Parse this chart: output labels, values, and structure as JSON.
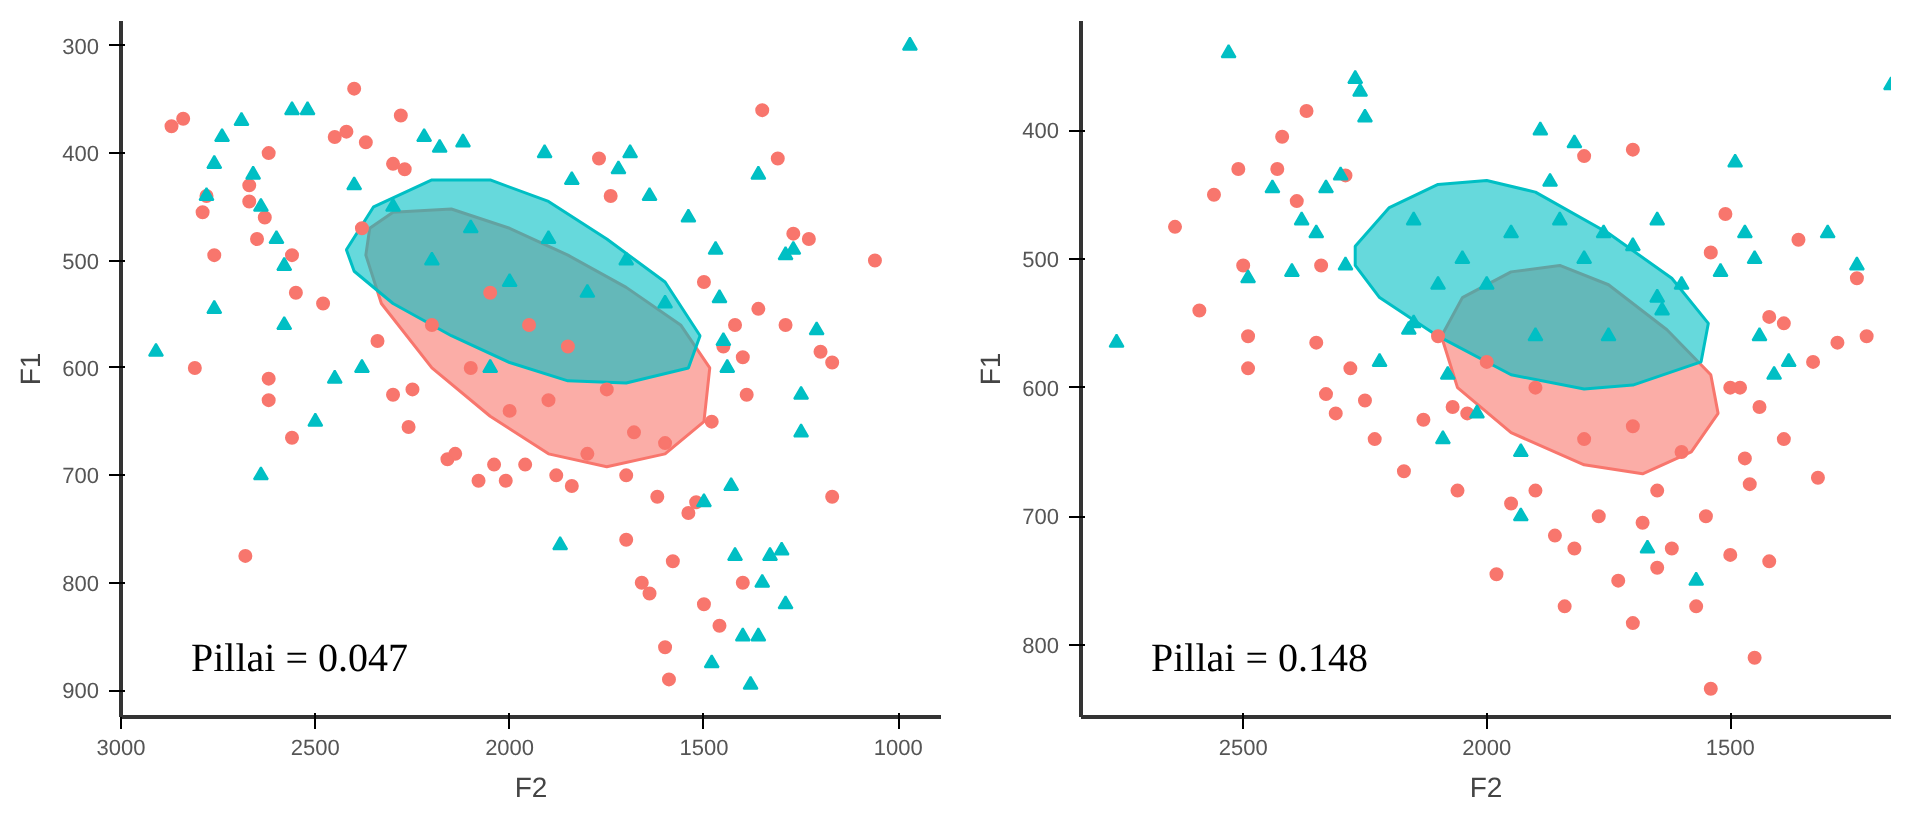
{
  "chart_data": [
    {
      "type": "scatter",
      "xlabel": "F2",
      "ylabel": "F1",
      "xlim": [
        3000,
        890
      ],
      "ylim": [
        925,
        277
      ],
      "xticks": [
        3000,
        2500,
        2000,
        1500,
        1000
      ],
      "yticks": [
        300,
        400,
        500,
        600,
        700,
        800,
        900
      ],
      "grid": false,
      "annotations": [
        "Pillai = 0.047"
      ],
      "series": [
        {
          "marker": "circle",
          "color": "#f8766d",
          "x": [
            2870,
            2840,
            2780,
            2790,
            2760,
            2620,
            2670,
            2670,
            2650,
            2630,
            2810,
            2680,
            2620,
            2620,
            2560,
            2560,
            2550,
            2480,
            2450,
            2420,
            2400,
            2370,
            2280,
            2270,
            2340,
            2300,
            2260,
            2160,
            2140,
            2080,
            2040,
            2010,
            1960,
            1880,
            1840,
            1770,
            1740,
            1700,
            1660,
            1640,
            1600,
            1590,
            1540,
            1520,
            1500,
            1460,
            1450,
            1420,
            1400,
            1390,
            1360,
            1350,
            1310,
            1290,
            1270,
            1230,
            1170,
            1170,
            1060,
            1900,
            2000,
            1750,
            1680,
            1600,
            2380,
            2300,
            2200,
            2250,
            1800,
            1700,
            1620,
            1580,
            1400,
            1200,
            1480,
            1500,
            2100,
            2050,
            1950,
            1850
          ],
          "values": [
            375,
            368,
            440,
            455,
            495,
            400,
            430,
            445,
            480,
            460,
            600,
            775,
            610,
            630,
            665,
            495,
            530,
            540,
            385,
            380,
            340,
            390,
            365,
            415,
            575,
            625,
            655,
            685,
            680,
            705,
            690,
            705,
            690,
            700,
            710,
            405,
            440,
            760,
            800,
            810,
            860,
            890,
            735,
            725,
            820,
            840,
            580,
            560,
            590,
            625,
            545,
            360,
            405,
            560,
            475,
            480,
            595,
            720,
            500,
            630,
            640,
            620,
            660,
            670,
            470,
            410,
            560,
            620,
            680,
            700,
            720,
            780,
            800,
            585,
            650,
            520,
            600,
            530,
            560,
            580
          ]
        },
        {
          "marker": "triangle",
          "color": "#00bfc4",
          "x": [
            2910,
            2760,
            2780,
            2760,
            2740,
            2690,
            2660,
            2640,
            2600,
            2580,
            2580,
            2560,
            2520,
            2500,
            2450,
            2380,
            2220,
            2180,
            2120,
            1910,
            1870,
            1840,
            1720,
            1690,
            1640,
            1540,
            1470,
            1460,
            1450,
            1440,
            1430,
            1420,
            1400,
            1380,
            1360,
            1350,
            1330,
            1300,
            1290,
            1360,
            1290,
            1270,
            1210,
            1250,
            1250,
            970,
            2640,
            1500,
            1480,
            2200,
            2100,
            2000,
            1900,
            1800,
            1700,
            2300,
            2050,
            1600,
            2400
          ],
          "values": [
            585,
            545,
            440,
            410,
            385,
            370,
            420,
            450,
            480,
            505,
            560,
            360,
            360,
            650,
            610,
            600,
            385,
            395,
            390,
            400,
            765,
            425,
            415,
            400,
            440,
            460,
            490,
            535,
            575,
            600,
            710,
            775,
            850,
            895,
            850,
            800,
            775,
            770,
            820,
            420,
            495,
            490,
            565,
            625,
            660,
            300,
            700,
            725,
            875,
            500,
            470,
            520,
            480,
            530,
            500,
            450,
            600,
            540,
            430
          ]
        },
        {
          "type": "area",
          "color": "#f8766d",
          "x": [
            2360,
            2300,
            2150,
            2000,
            1850,
            1700,
            1560,
            1485,
            1500,
            1600,
            1750,
            1900,
            2050,
            2200,
            2330,
            2370
          ],
          "values": [
            470,
            455,
            452,
            470,
            495,
            525,
            560,
            600,
            650,
            680,
            692,
            680,
            645,
            600,
            540,
            495
          ]
        },
        {
          "type": "area",
          "color": "#00bfc4",
          "x": [
            2420,
            2350,
            2200,
            2050,
            1900,
            1750,
            1600,
            1510,
            1540,
            1700,
            1850,
            2000,
            2150,
            2300,
            2400
          ],
          "values": [
            490,
            450,
            425,
            425,
            445,
            480,
            520,
            570,
            600,
            614,
            612,
            595,
            570,
            540,
            510
          ]
        }
      ]
    },
    {
      "type": "scatter",
      "xlabel": "F2",
      "ylabel": "F1",
      "xlim": [
        2833,
        1170
      ],
      "ylim": [
        856,
        315
      ],
      "xticks": [
        2500,
        2000,
        1500
      ],
      "yticks": [
        400,
        500,
        600,
        700,
        800
      ],
      "grid": false,
      "annotations": [
        "Pillai = 0.148"
      ],
      "series": [
        {
          "marker": "circle",
          "color": "#f8766d",
          "x": [
            2640,
            2590,
            2560,
            2510,
            2500,
            2490,
            2490,
            2430,
            2420,
            2390,
            2370,
            2350,
            2340,
            2330,
            2310,
            2290,
            2280,
            2250,
            2230,
            2170,
            2130,
            2070,
            2060,
            2040,
            1980,
            1950,
            1900,
            1860,
            1840,
            1820,
            1800,
            1770,
            1730,
            1700,
            1700,
            1680,
            1650,
            1620,
            1570,
            1540,
            1540,
            1510,
            1500,
            1480,
            1470,
            1460,
            1450,
            1440,
            1420,
            1420,
            1390,
            1390,
            1360,
            1330,
            1320,
            1280,
            1240,
            1220,
            1800,
            1700,
            1600,
            1650,
            1900,
            2000,
            2100,
            1550,
            1500
          ],
          "values": [
            475,
            540,
            450,
            430,
            505,
            560,
            585,
            430,
            405,
            455,
            385,
            565,
            505,
            605,
            620,
            435,
            585,
            610,
            640,
            665,
            625,
            615,
            680,
            620,
            745,
            690,
            680,
            715,
            770,
            725,
            420,
            700,
            750,
            415,
            783,
            705,
            740,
            725,
            770,
            834,
            495,
            465,
            730,
            600,
            655,
            675,
            810,
            615,
            735,
            545,
            640,
            550,
            485,
            580,
            670,
            565,
            515,
            560,
            640,
            630,
            650,
            680,
            600,
            580,
            560,
            700,
            600
          ]
        },
        {
          "marker": "triangle",
          "color": "#00bfc4",
          "x": [
            2760,
            2530,
            2490,
            2440,
            2400,
            2380,
            2350,
            2330,
            2300,
            2290,
            2270,
            2260,
            2250,
            2220,
            2160,
            2150,
            2100,
            2090,
            2080,
            2020,
            1930,
            1930,
            1890,
            1870,
            1820,
            1760,
            1700,
            1650,
            1670,
            1640,
            1600,
            1570,
            1520,
            1490,
            1470,
            1450,
            1440,
            1410,
            1380,
            1300,
            1240,
            1170,
            1850,
            1950,
            2000,
            2050,
            2150,
            1800,
            1750,
            1650,
            1900
          ],
          "values": [
            565,
            340,
            515,
            445,
            510,
            470,
            480,
            445,
            435,
            505,
            360,
            370,
            390,
            580,
            555,
            550,
            520,
            640,
            590,
            620,
            650,
            700,
            400,
            440,
            410,
            480,
            490,
            470,
            725,
            540,
            520,
            750,
            510,
            425,
            480,
            500,
            560,
            590,
            580,
            480,
            505,
            365,
            470,
            480,
            520,
            500,
            470,
            500,
            560,
            530,
            560
          ]
        },
        {
          "type": "area",
          "color": "#f8766d",
          "x": [
            2093,
            2050,
            1950,
            1850,
            1750,
            1630,
            1540,
            1525,
            1580,
            1680,
            1800,
            1950,
            2060
          ],
          "values": [
            560,
            530,
            510,
            505,
            520,
            555,
            590,
            620,
            650,
            667,
            660,
            635,
            600
          ]
        },
        {
          "type": "area",
          "color": "#00bfc4",
          "x": [
            2270,
            2200,
            2100,
            2000,
            1900,
            1750,
            1620,
            1545,
            1560,
            1700,
            1800,
            1950,
            2100,
            2220,
            2270
          ],
          "values": [
            490,
            460,
            442,
            439,
            448,
            480,
            515,
            550,
            580,
            598,
            601,
            590,
            560,
            530,
            505
          ]
        }
      ]
    }
  ]
}
